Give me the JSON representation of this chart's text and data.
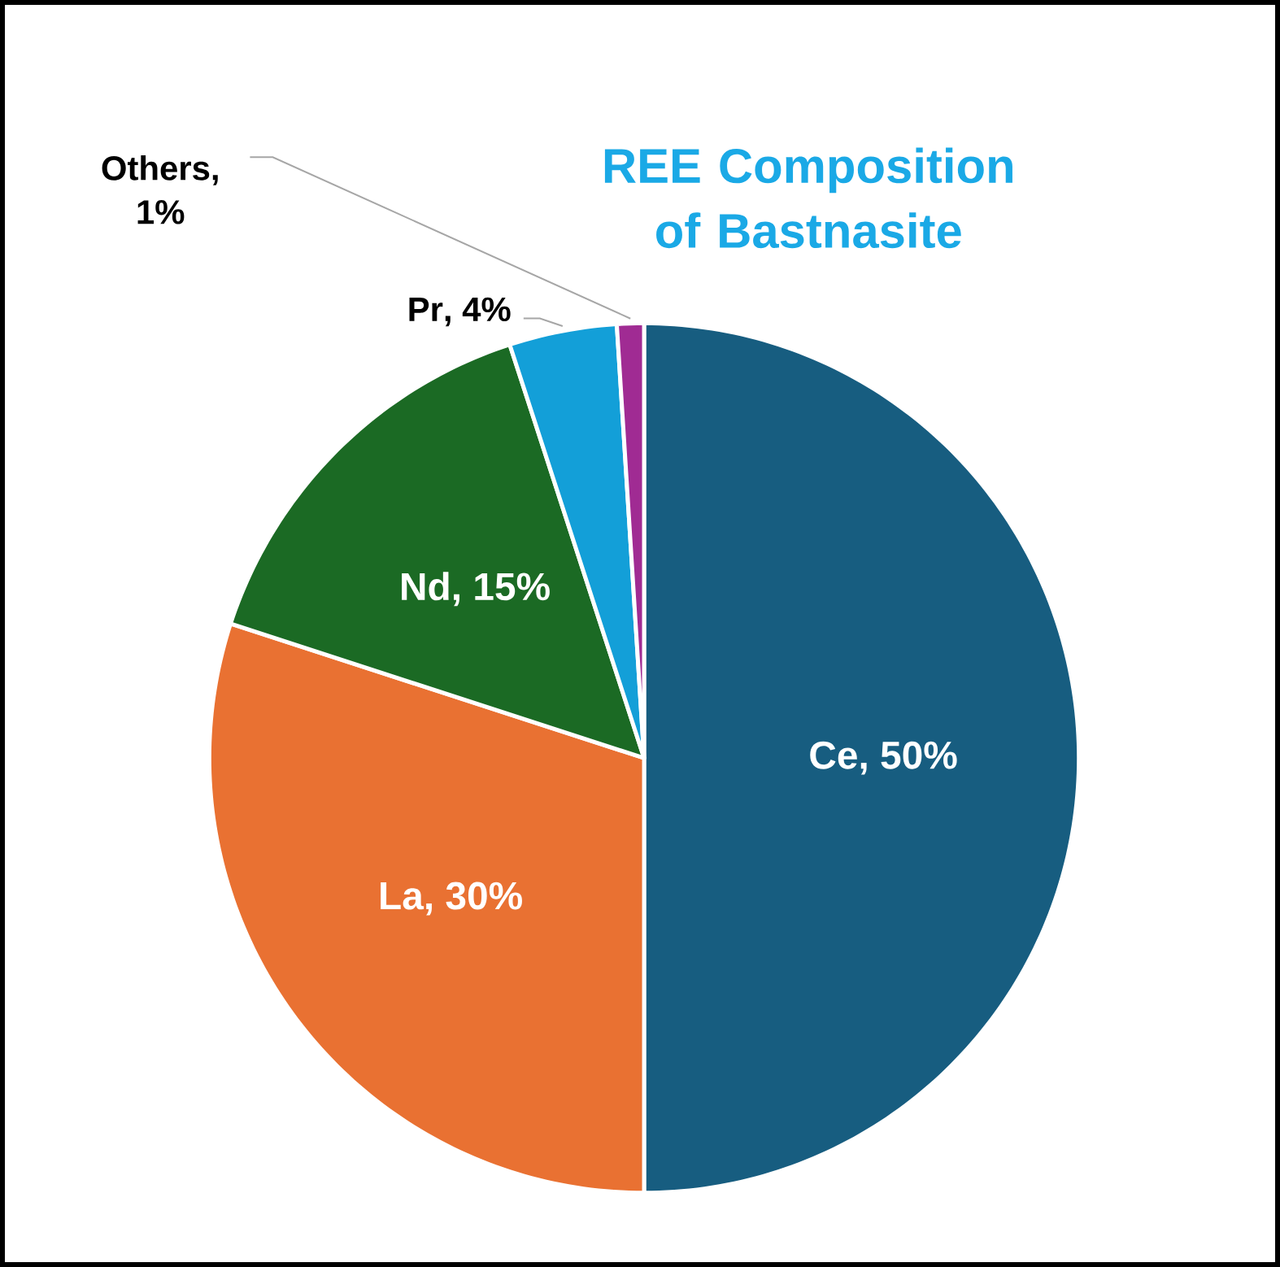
{
  "chart_data": {
    "type": "pie",
    "title": "REE Composition of Bastnasite",
    "categories": [
      "Ce",
      "La",
      "Nd",
      "Pr",
      "Others"
    ],
    "values": [
      50,
      30,
      15,
      4,
      1
    ],
    "value_labels": [
      ", 50%",
      ", 30%",
      ", 15%",
      ", 4%",
      ", 1%"
    ],
    "colors": [
      "#175d80",
      "#e97132",
      "#1b6a24",
      "#139fd8",
      "#a02b93"
    ]
  }
}
